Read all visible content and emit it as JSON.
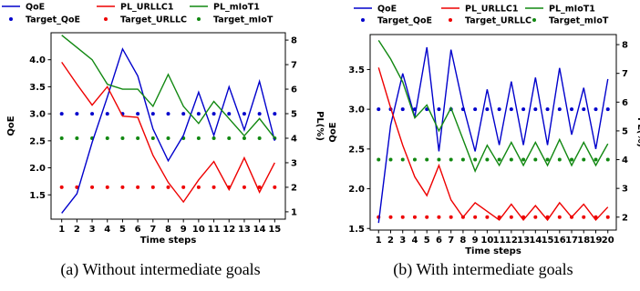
{
  "chart_data": [
    {
      "id": "a",
      "type": "line",
      "caption": "(a) Without intermediate goals",
      "xlabel": "Time steps",
      "ylabel": "QoE",
      "y2label": "PL(%)",
      "x": [
        1,
        2,
        3,
        4,
        5,
        6,
        7,
        8,
        9,
        10,
        11,
        12,
        13,
        14,
        15
      ],
      "ylim": [
        1.05,
        4.5
      ],
      "y2lim": [
        0.7,
        8.3
      ],
      "yticks": [
        1.5,
        2.0,
        2.5,
        3.0,
        3.5,
        4.0
      ],
      "ytick_labels": [
        "1.5",
        "2.0",
        "2.5",
        "3.0",
        "3.5",
        "4.0"
      ],
      "y2ticks": [
        1,
        2,
        3,
        4,
        5,
        6,
        7,
        8
      ],
      "y2tick_labels": [
        "1",
        "2",
        "3",
        "4",
        "5",
        "6",
        "7",
        "8"
      ],
      "legend_position": "top",
      "series": [
        {
          "name": "QoE",
          "kind": "line",
          "axis": "left",
          "color": "#0000cc",
          "values": [
            1.16,
            1.52,
            2.47,
            3.31,
            4.2,
            3.7,
            2.72,
            2.13,
            2.6,
            3.4,
            2.6,
            3.5,
            2.7,
            3.6,
            2.5
          ]
        },
        {
          "name": "PL_URLLC1",
          "kind": "line",
          "axis": "right",
          "color": "#ee0000",
          "values": [
            7.1,
            6.2,
            5.35,
            6.1,
            4.9,
            4.85,
            3.3,
            2.2,
            1.4,
            2.3,
            3.05,
            1.9,
            3.2,
            1.8,
            3.0
          ]
        },
        {
          "name": "PL_mIoT1",
          "kind": "line",
          "axis": "right",
          "color": "#118811",
          "values": [
            8.2,
            7.7,
            7.2,
            6.2,
            6.0,
            6.0,
            5.3,
            6.6,
            5.3,
            4.6,
            5.5,
            4.8,
            4.1,
            4.8,
            4.0
          ]
        },
        {
          "name": "Target_QoE",
          "kind": "dots",
          "axis": "left",
          "color": "#0000cc",
          "values": [
            3.0,
            3.0,
            3.0,
            3.0,
            3.0,
            3.0,
            3.0,
            3.0,
            3.0,
            3.0,
            3.0,
            3.0,
            3.0,
            3.0,
            3.0
          ]
        },
        {
          "name": "Target_URLLC",
          "kind": "dots",
          "axis": "right",
          "color": "#ee0000",
          "values": [
            2.0,
            2.0,
            2.0,
            2.0,
            2.0,
            2.0,
            2.0,
            2.0,
            2.0,
            2.0,
            2.0,
            2.0,
            2.0,
            2.0,
            2.0
          ]
        },
        {
          "name": "Target_mIoT",
          "kind": "dots",
          "axis": "right",
          "color": "#118811",
          "values": [
            4.0,
            4.0,
            4.0,
            4.0,
            4.0,
            4.0,
            4.0,
            4.0,
            4.0,
            4.0,
            4.0,
            4.0,
            4.0,
            4.0,
            4.0
          ]
        }
      ]
    },
    {
      "id": "b",
      "type": "line",
      "caption": "(b) With intermediate goals",
      "xlabel": "Time steps",
      "ylabel": "QoE",
      "y2label": "PL(%)",
      "x": [
        1,
        2,
        3,
        4,
        5,
        6,
        7,
        8,
        9,
        10,
        11,
        12,
        13,
        14,
        15,
        16,
        17,
        18,
        19,
        20
      ],
      "ylim": [
        1.48,
        3.94
      ],
      "y2lim": [
        1.55,
        8.35
      ],
      "yticks": [
        1.5,
        2.0,
        2.5,
        3.0,
        3.5
      ],
      "ytick_labels": [
        "1.5",
        "2.0",
        "2.5",
        "3.0",
        "3.5"
      ],
      "y2ticks": [
        2,
        3,
        4,
        5,
        6,
        7,
        8
      ],
      "y2tick_labels": [
        "2",
        "3",
        "4",
        "5",
        "6",
        "7",
        "8"
      ],
      "legend_position": "top",
      "series": [
        {
          "name": "QoE",
          "kind": "line",
          "axis": "left",
          "color": "#0000cc",
          "values": [
            1.57,
            2.8,
            3.45,
            2.9,
            3.78,
            2.47,
            3.75,
            3.05,
            2.47,
            3.25,
            2.55,
            3.35,
            2.55,
            3.4,
            2.55,
            3.52,
            2.68,
            3.27,
            2.5,
            3.38
          ]
        },
        {
          "name": "PL_URLLC1",
          "kind": "line",
          "axis": "right",
          "color": "#ee0000",
          "values": [
            7.2,
            5.8,
            4.5,
            3.4,
            2.75,
            3.8,
            2.6,
            2.0,
            2.5,
            2.2,
            1.9,
            2.45,
            1.9,
            2.4,
            1.9,
            2.5,
            2.0,
            2.45,
            1.9,
            2.35
          ]
        },
        {
          "name": "PL_mIoT1",
          "kind": "line",
          "axis": "right",
          "color": "#118811",
          "values": [
            8.15,
            7.5,
            6.7,
            5.45,
            5.9,
            5.0,
            5.8,
            4.7,
            3.6,
            4.5,
            3.8,
            4.6,
            3.8,
            4.6,
            3.8,
            4.7,
            3.8,
            4.6,
            3.8,
            4.55
          ]
        },
        {
          "name": "Target_QoE",
          "kind": "dots",
          "axis": "left",
          "color": "#0000cc",
          "values": [
            3.0,
            3.0,
            3.0,
            3.0,
            3.0,
            3.0,
            3.0,
            3.0,
            3.0,
            3.0,
            3.0,
            3.0,
            3.0,
            3.0,
            3.0,
            3.0,
            3.0,
            3.0,
            3.0,
            3.0
          ]
        },
        {
          "name": "Target_URLLC",
          "kind": "dots",
          "axis": "right",
          "color": "#ee0000",
          "values": [
            2.0,
            2.0,
            2.0,
            2.0,
            2.0,
            2.0,
            2.0,
            2.0,
            2.0,
            2.0,
            2.0,
            2.0,
            2.0,
            2.0,
            2.0,
            2.0,
            2.0,
            2.0,
            2.0,
            2.0
          ]
        },
        {
          "name": "Target_mIoT",
          "kind": "dots",
          "axis": "right",
          "color": "#118811",
          "values": [
            4.0,
            4.0,
            4.0,
            4.0,
            4.0,
            4.0,
            4.0,
            4.0,
            4.0,
            4.0,
            4.0,
            4.0,
            4.0,
            4.0,
            4.0,
            4.0,
            4.0,
            4.0,
            4.0,
            4.0
          ]
        }
      ]
    }
  ]
}
